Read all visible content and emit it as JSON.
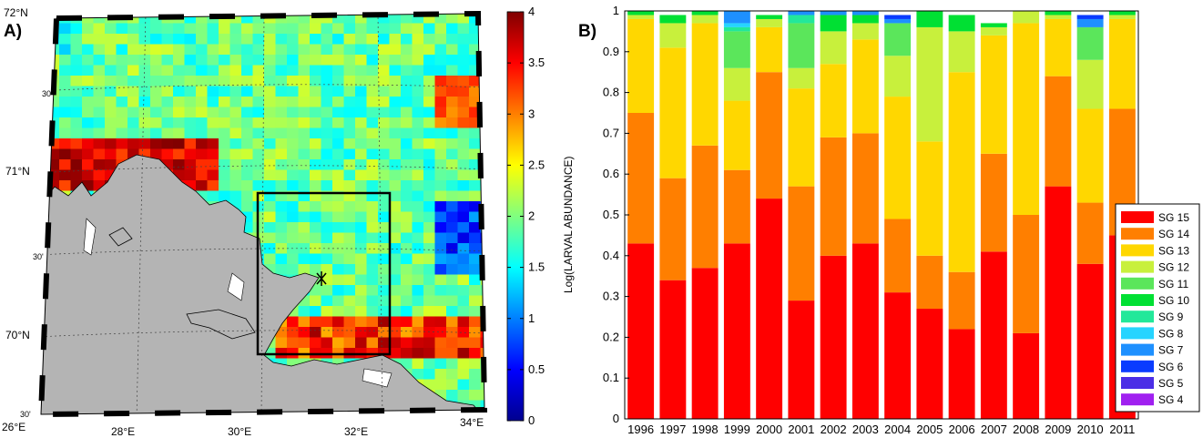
{
  "panel_a_label": "A)",
  "panel_b_label": "B)",
  "chart_data": [
    {
      "type": "heatmap",
      "colorbar": {
        "label": "Log(LARVAL ABUNDANCE)",
        "range": [
          0,
          4
        ],
        "ticks": [
          "0",
          "0.5",
          "1",
          "1.5",
          "2",
          "2.5",
          "3",
          "3.5",
          "4"
        ],
        "colormap": "jet"
      },
      "lon_labels": [
        "26°E",
        "28°E",
        "30°E",
        "32°E",
        "34°E"
      ],
      "lat_labels": [
        "72°N",
        "71°N",
        "70°N"
      ],
      "lat_minute_labels": [
        "30'",
        "30'",
        "30'"
      ],
      "land_color": "#b4b4b4",
      "study_box": {
        "lon": [
          29.9,
          32.2
        ],
        "lat": [
          70.0,
          70.9
        ]
      }
    },
    {
      "type": "bar",
      "stacked": true,
      "categories": [
        "1996",
        "1997",
        "1998",
        "1999",
        "2000",
        "2001",
        "2002",
        "2003",
        "2004",
        "2005",
        "2006",
        "2007",
        "2008",
        "2009",
        "2010",
        "2011"
      ],
      "ylim": [
        0,
        1
      ],
      "yticks": [
        "0",
        "0.1",
        "0.2",
        "0.3",
        "0.4",
        "0.5",
        "0.6",
        "0.7",
        "0.8",
        "0.9",
        "1"
      ],
      "legend_position": "right",
      "series": [
        {
          "name": "SG 15",
          "color": "#ff0000",
          "values": [
            0.43,
            0.34,
            0.37,
            0.43,
            0.54,
            0.29,
            0.4,
            0.43,
            0.31,
            0.27,
            0.22,
            0.41,
            0.21,
            0.57,
            0.38,
            0.45
          ]
        },
        {
          "name": "SG 14",
          "color": "#ff7f00",
          "values": [
            0.32,
            0.25,
            0.3,
            0.18,
            0.31,
            0.28,
            0.29,
            0.27,
            0.18,
            0.13,
            0.14,
            0.24,
            0.29,
            0.27,
            0.15,
            0.31
          ]
        },
        {
          "name": "SG 13",
          "color": "#ffd700",
          "values": [
            0.23,
            0.32,
            0.3,
            0.17,
            0.11,
            0.24,
            0.18,
            0.23,
            0.3,
            0.28,
            0.49,
            0.29,
            0.47,
            0.14,
            0.23,
            0.22
          ]
        },
        {
          "name": "SG 12",
          "color": "#c8f03c",
          "values": [
            0.01,
            0.06,
            0.02,
            0.08,
            0.02,
            0.05,
            0.08,
            0.04,
            0.1,
            0.28,
            0.1,
            0.02,
            0.03,
            0.01,
            0.12,
            0.01
          ]
        },
        {
          "name": "SG 11",
          "color": "#5be65b",
          "values": [
            0.0,
            0.0,
            0.0,
            0.09,
            0.0,
            0.11,
            0.0,
            0.0,
            0.08,
            0.0,
            0.0,
            0.0,
            0.0,
            0.0,
            0.08,
            0.0
          ]
        },
        {
          "name": "SG 10",
          "color": "#00e033",
          "values": [
            0.01,
            0.02,
            0.01,
            0.0,
            0.01,
            0.0,
            0.04,
            0.02,
            0.0,
            0.04,
            0.04,
            0.01,
            0.0,
            0.01,
            0.0,
            0.01
          ]
        },
        {
          "name": "SG 9",
          "color": "#22e89a",
          "values": [
            0,
            0,
            0,
            0.01,
            0,
            0.02,
            0,
            0,
            0,
            0,
            0,
            0,
            0,
            0,
            0,
            0
          ]
        },
        {
          "name": "SG 8",
          "color": "#26d4ff",
          "values": [
            0,
            0,
            0,
            0.01,
            0,
            0,
            0,
            0,
            0,
            0,
            0,
            0,
            0,
            0,
            0,
            0
          ]
        },
        {
          "name": "SG 7",
          "color": "#1e90ff",
          "values": [
            0,
            0,
            0,
            0.03,
            0,
            0.01,
            0.01,
            0.01,
            0.01,
            0,
            0,
            0,
            0,
            0,
            0.02,
            0
          ]
        },
        {
          "name": "SG 6",
          "color": "#0a3cff",
          "values": [
            0,
            0,
            0,
            0,
            0,
            0,
            0,
            0,
            0.01,
            0,
            0,
            0,
            0,
            0,
            0.01,
            0
          ]
        },
        {
          "name": "SG 5",
          "color": "#4b2ee6",
          "values": [
            0,
            0,
            0,
            0,
            0,
            0,
            0,
            0,
            0,
            0,
            0,
            0,
            0,
            0,
            0,
            0
          ]
        },
        {
          "name": "SG 4",
          "color": "#a020f0",
          "values": [
            0,
            0,
            0,
            0,
            0,
            0,
            0,
            0,
            0,
            0,
            0,
            0,
            0,
            0,
            0,
            0
          ]
        }
      ]
    }
  ]
}
